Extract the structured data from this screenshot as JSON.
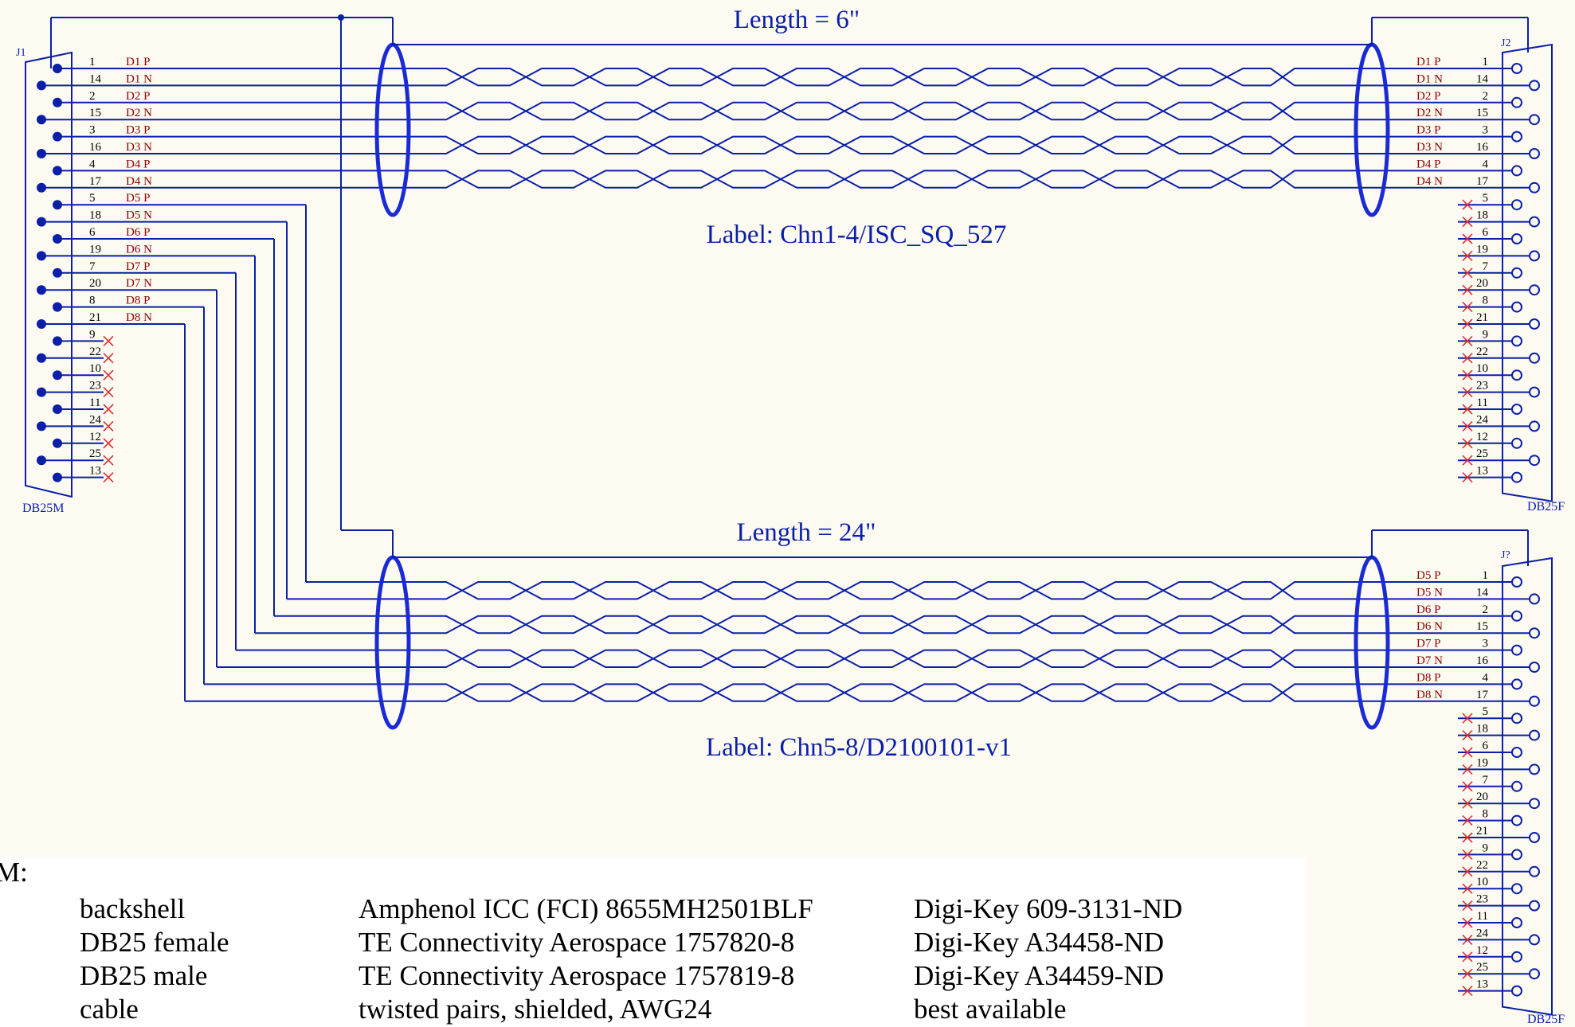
{
  "colors": {
    "background": "#fdfaf1",
    "wire": "#0a1fa8",
    "shield": "#1a2bd6",
    "net_label": "#8b0000",
    "no_connect": "#e03030",
    "pin_text": "#000000",
    "ref_text": "#0a1fa8"
  },
  "cables": [
    {
      "length_label": "Length = 6\"",
      "cable_label": "Label: Chn1-4/ISC_SQ_527",
      "pairs": 4
    },
    {
      "length_label": "Length = 24\"",
      "cable_label": "Label: Chn5-8/D2100101-v1",
      "pairs": 4
    }
  ],
  "connectors": {
    "j1": {
      "ref": "J1",
      "part": "DB25M",
      "pins": [
        "1",
        "14",
        "2",
        "15",
        "3",
        "16",
        "4",
        "17",
        "5",
        "18",
        "6",
        "19",
        "7",
        "20",
        "8",
        "21",
        "9",
        "22",
        "10",
        "23",
        "11",
        "24",
        "12",
        "25",
        "13"
      ],
      "nets": [
        "D1_P",
        "D1_N",
        "D2_P",
        "D2_N",
        "D3_P",
        "D3_N",
        "D4_P",
        "D4_N",
        "D5_P",
        "D5_N",
        "D6_P",
        "D6_N",
        "D7_P",
        "D7_N",
        "D8_P",
        "D8_N"
      ]
    },
    "j2": {
      "ref": "J2",
      "part": "DB25F",
      "pins": [
        "1",
        "14",
        "2",
        "15",
        "3",
        "16",
        "4",
        "17",
        "5",
        "18",
        "6",
        "19",
        "7",
        "20",
        "8",
        "21",
        "9",
        "22",
        "10",
        "23",
        "11",
        "24",
        "12",
        "25",
        "13"
      ],
      "nets": [
        "D1_P",
        "D1_N",
        "D2_P",
        "D2_N",
        "D3_P",
        "D3_N",
        "D4_P",
        "D4_N"
      ]
    },
    "j3": {
      "ref": "J?",
      "part": "DB25F",
      "pins": [
        "1",
        "14",
        "2",
        "15",
        "3",
        "16",
        "4",
        "17",
        "5",
        "18",
        "6",
        "19",
        "7",
        "20",
        "8",
        "21",
        "9",
        "22",
        "10",
        "23",
        "11",
        "24",
        "12",
        "25",
        "13"
      ],
      "nets": [
        "D5_P",
        "D5_N",
        "D6_P",
        "D6_N",
        "D7_P",
        "D7_N",
        "D8_P",
        "D8_N"
      ]
    }
  },
  "bom": {
    "heading": "M:",
    "rows": [
      {
        "item": "backshell",
        "part": "Amphenol ICC (FCI) 8655MH2501BLF",
        "vendor": "Digi-Key 609-3131-ND"
      },
      {
        "item": "DB25 female",
        "part": "TE Connectivity Aerospace 1757820-8",
        "vendor": "Digi-Key A34458-ND"
      },
      {
        "item": "DB25 male",
        "part": "TE Connectivity Aerospace 1757819-8",
        "vendor": "Digi-Key A34459-ND"
      },
      {
        "item": "cable",
        "part": "twisted pairs, shielded, AWG24",
        "vendor": "best available"
      }
    ]
  }
}
